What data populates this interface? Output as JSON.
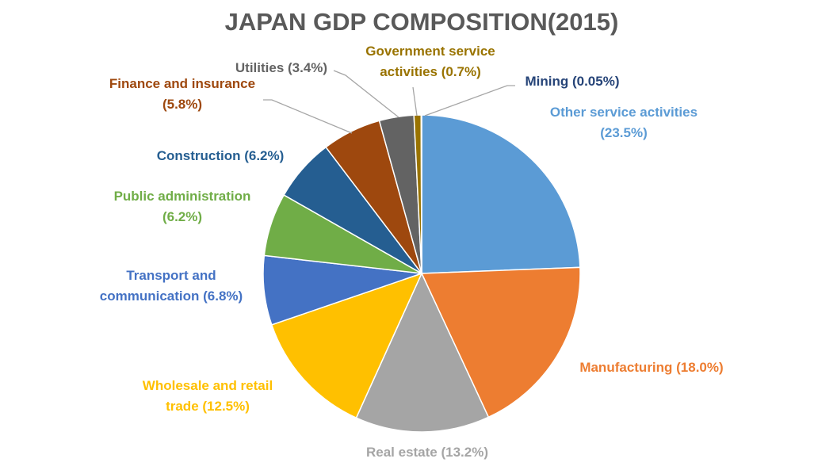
{
  "chart_data": {
    "type": "pie",
    "title": "JAPAN GDP COMPOSITION(2015)",
    "slices": [
      {
        "name": "Other service activities",
        "value": 23.5,
        "label_lines": [
          "Other service activities",
          "(23.5%)"
        ],
        "color": "#5B9BD5"
      },
      {
        "name": "Manufacturing",
        "value": 18.0,
        "label_lines": [
          "Manufacturing (18.0%)"
        ],
        "color": "#ED7D31"
      },
      {
        "name": "Real estate",
        "value": 13.2,
        "label_lines": [
          "Real estate (13.2%)"
        ],
        "color": "#A5A5A5"
      },
      {
        "name": "Wholesale and retail trade",
        "value": 12.5,
        "label_lines": [
          "Wholesale and retail",
          "trade (12.5%)"
        ],
        "color": "#FFC000"
      },
      {
        "name": "Transport and communication",
        "value": 6.8,
        "label_lines": [
          "Transport and",
          "communication (6.8%)"
        ],
        "color": "#4472C4"
      },
      {
        "name": "Public administration",
        "value": 6.2,
        "label_lines": [
          "Public administration",
          "(6.2%)"
        ],
        "color": "#70AD47"
      },
      {
        "name": "Construction",
        "value": 6.2,
        "label_lines": [
          "Construction (6.2%)"
        ],
        "color": "#255E91"
      },
      {
        "name": "Finance and insurance",
        "value": 5.8,
        "label_lines": [
          "Finance and insurance",
          "(5.8%)"
        ],
        "color": "#9E480E"
      },
      {
        "name": "Utilities",
        "value": 3.4,
        "label_lines": [
          "Utilities (3.4%)"
        ],
        "color": "#636363"
      },
      {
        "name": "Government service activities",
        "value": 0.7,
        "label_lines": [
          "Government service",
          "activities (0.7%)"
        ],
        "color": "#997300"
      },
      {
        "name": "Mining",
        "value": 0.05,
        "label_lines": [
          "Mining (0.05%)"
        ],
        "color": "#264478"
      }
    ],
    "legend": "none",
    "start_angle": "12 o'clock",
    "direction": "clockwise"
  }
}
